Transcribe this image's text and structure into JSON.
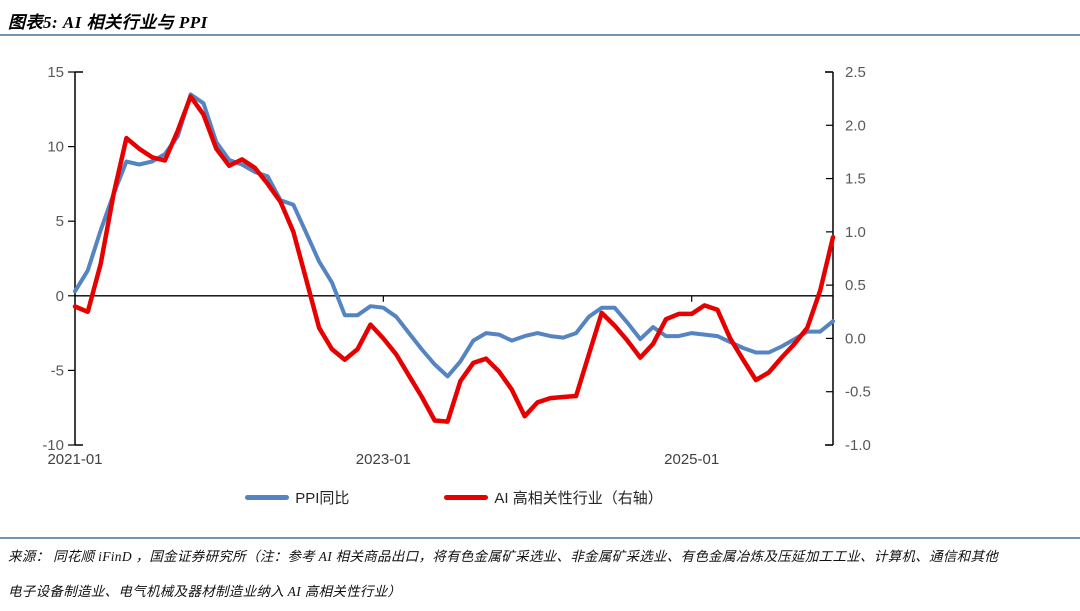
{
  "header": {
    "title": "图表5: AI 相关行业与 PPI"
  },
  "chart_data": {
    "type": "line",
    "title": "AI 相关行业与 PPI",
    "x": [
      "2021-01",
      "2021-02",
      "2021-03",
      "2021-04",
      "2021-05",
      "2021-06",
      "2021-07",
      "2021-08",
      "2021-09",
      "2021-10",
      "2021-11",
      "2021-12",
      "2022-01",
      "2022-02",
      "2022-03",
      "2022-04",
      "2022-05",
      "2022-06",
      "2022-07",
      "2022-08",
      "2022-09",
      "2022-10",
      "2022-11",
      "2022-12",
      "2023-01",
      "2023-02",
      "2023-03",
      "2023-04",
      "2023-05",
      "2023-06",
      "2023-07",
      "2023-08",
      "2023-09",
      "2023-10",
      "2023-11",
      "2023-12",
      "2024-01",
      "2024-02",
      "2024-03",
      "2024-04",
      "2024-05",
      "2024-06",
      "2024-07",
      "2024-08",
      "2024-09",
      "2024-10",
      "2024-11",
      "2024-12",
      "2025-01",
      "2025-02",
      "2025-03",
      "2025-04",
      "2025-05",
      "2025-06",
      "2025-07",
      "2025-08",
      "2025-09",
      "2025-10",
      "2025-11",
      "2025-12"
    ],
    "series": [
      {
        "name": "PPI同比",
        "axis": "left",
        "color": "#5584c2",
        "stroke_width": 4,
        "values": [
          0.3,
          1.7,
          4.4,
          6.8,
          9.0,
          8.8,
          9.0,
          9.5,
          10.7,
          13.5,
          12.9,
          10.3,
          9.1,
          8.8,
          8.3,
          8.0,
          6.4,
          6.1,
          4.2,
          2.3,
          0.9,
          -1.3,
          -1.3,
          -0.7,
          -0.8,
          -1.4,
          -2.5,
          -3.6,
          -4.6,
          -5.4,
          -4.4,
          -3.0,
          -2.5,
          -2.6,
          -3.0,
          -2.7,
          -2.5,
          -2.7,
          -2.8,
          -2.5,
          -1.4,
          -0.8,
          -0.8,
          -1.8,
          -2.9,
          -2.1,
          -2.7,
          -2.7,
          -2.5,
          -2.6,
          -2.7,
          -3.1,
          -3.5,
          -3.8,
          -3.8,
          -3.4,
          -2.9,
          -2.4,
          -2.4,
          -1.7
        ]
      },
      {
        "name": "AI 高相关性行业（右轴）",
        "axis": "right",
        "color": "#e60000",
        "stroke_width": 4.5,
        "values": [
          0.3,
          0.25,
          0.7,
          1.35,
          1.88,
          1.78,
          1.7,
          1.67,
          1.95,
          2.27,
          2.1,
          1.78,
          1.62,
          1.68,
          1.6,
          1.45,
          1.28,
          1.0,
          0.55,
          0.1,
          -0.1,
          -0.2,
          -0.1,
          0.13,
          0.0,
          -0.15,
          -0.35,
          -0.55,
          -0.77,
          -0.78,
          -0.4,
          -0.23,
          -0.19,
          -0.31,
          -0.48,
          -0.73,
          -0.6,
          -0.56,
          -0.55,
          -0.54,
          -0.15,
          0.24,
          0.12,
          -0.02,
          -0.18,
          -0.05,
          0.18,
          0.23,
          0.23,
          0.31,
          0.27,
          0.0,
          -0.2,
          -0.39,
          -0.32,
          -0.18,
          -0.05,
          0.1,
          0.45,
          0.95
        ]
      }
    ],
    "left_axis": {
      "min": -10,
      "max": 15,
      "ticks": [
        "15",
        "10",
        "5",
        "0",
        "-5",
        "-10"
      ],
      "tick_values": [
        15,
        10,
        5,
        0,
        -5,
        -10
      ]
    },
    "right_axis": {
      "min": -1.0,
      "max": 2.5,
      "ticks": [
        "2.5",
        "2.0",
        "1.5",
        "1.0",
        "0.5",
        "0.0",
        "-0.5",
        "-1.0"
      ],
      "tick_values": [
        2.5,
        2.0,
        1.5,
        1.0,
        0.5,
        0.0,
        -0.5,
        -1.0
      ]
    },
    "x_axis": {
      "tick_labels": [
        "2021-01",
        "2023-01",
        "2025-01"
      ],
      "tick_indices": [
        0,
        24,
        48
      ]
    },
    "grid": false,
    "zero_line": true,
    "legend_position": "bottom"
  },
  "legend": {
    "items": [
      {
        "label": "PPI同比",
        "color": "#5584c2"
      },
      {
        "label": "AI 高相关性行业（右轴）",
        "color": "#e60000"
      }
    ]
  },
  "footer": {
    "line1": "来源： 同花顺 iFinD ，国金证券研究所（注：参考 AI 相关商品出口，将有色金属矿采选业、非金属矿采选业、有色金属冶炼及压延加工工业、计算机、通信和其他",
    "line2": "电子设备制造业、电气机械及器材制造业纳入 AI 高相关性行业）"
  },
  "colors": {
    "rule": "#7493ae",
    "axis": "#000000",
    "tick_label": "#595959",
    "x_label": "#404040"
  }
}
